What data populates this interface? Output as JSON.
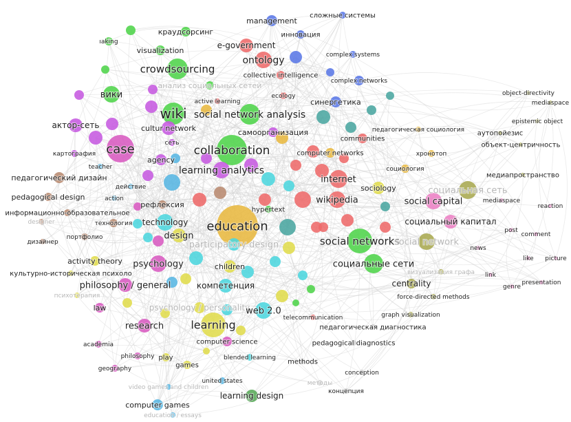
{
  "colors": {
    "green": "#4fd44a",
    "red": "#ee6a6a",
    "blue": "#5a78e6",
    "purple": "#c65ae0",
    "magenta": "#d85ac0",
    "pink": "#ec80c4",
    "cyan": "#4cd6de",
    "teal": "#4aa6a0",
    "yellow": "#e0dc4c",
    "orange": "#e8b840",
    "brown": "#b88a70",
    "olive": "#a8a850",
    "lightblue": "#58b6e2",
    "darkgreen": "#58a858",
    "grey": "#cccccc",
    "edge": "#d6d6d6"
  },
  "nodes": [
    {
      "label": "management",
      "cluster": "blue"
    },
    {
      "label": "сложные системы",
      "cluster": "blue"
    },
    {
      "label": "инновация",
      "cluster": "blue"
    },
    {
      "label": "e-government",
      "cluster": "red"
    },
    {
      "label": "ontology",
      "cluster": "red"
    },
    {
      "label": "complex systems",
      "cluster": "blue"
    },
    {
      "label": "collective intelligence",
      "cluster": "red"
    },
    {
      "label": "complex networks",
      "cluster": "blue"
    },
    {
      "label": "ecology",
      "cluster": "red"
    },
    {
      "label": "синергетика",
      "cluster": "blue"
    },
    {
      "label": "краудсорсинг",
      "cluster": "green"
    },
    {
      "label": "visualization",
      "cluster": "green"
    },
    {
      "label": "crowdsourcing",
      "cluster": "green"
    },
    {
      "label": "анализ социальных сетей",
      "cluster": "green"
    },
    {
      "label": "вики",
      "cluster": "green"
    },
    {
      "label": "active learning",
      "cluster": "red"
    },
    {
      "label": "wiki",
      "cluster": "green"
    },
    {
      "label": "social network analysis",
      "cluster": "green"
    },
    {
      "label": "актор-сеть",
      "cluster": "purple"
    },
    {
      "label": "cultur network",
      "cluster": "purple"
    },
    {
      "label": "самоорганизация",
      "cluster": "purple"
    },
    {
      "label": "case",
      "cluster": "magenta"
    },
    {
      "label": "сеть",
      "cluster": "purple"
    },
    {
      "label": "collaboration",
      "cluster": "green"
    },
    {
      "label": "картография",
      "cluster": "purple"
    },
    {
      "label": "agency",
      "cluster": "purple"
    },
    {
      "label": "teacher",
      "cluster": "lightblue"
    },
    {
      "label": "learning analytics",
      "cluster": "purple"
    },
    {
      "label": "педагогический дизайн",
      "cluster": "brown"
    },
    {
      "label": "действие",
      "cluster": "lightblue"
    },
    {
      "label": "pedagogical design",
      "cluster": "brown"
    },
    {
      "label": "action",
      "cluster": "lightblue"
    },
    {
      "label": "рефлексия",
      "cluster": "brown"
    },
    {
      "label": "информационно-образовательное",
      "cluster": "brown"
    },
    {
      "label": "designer",
      "cluster": "brown"
    },
    {
      "label": "технология",
      "cluster": "brown"
    },
    {
      "label": "technology",
      "cluster": "cyan"
    },
    {
      "label": "education",
      "cluster": "orange"
    },
    {
      "label": "hypertext",
      "cluster": "green"
    },
    {
      "label": "портфолио",
      "cluster": "brown"
    },
    {
      "label": "design",
      "cluster": "yellow"
    },
    {
      "label": "participatory design",
      "cluster": "cyan"
    },
    {
      "label": "дизайнер",
      "cluster": "brown"
    },
    {
      "label": "activity theory",
      "cluster": "yellow"
    },
    {
      "label": "psychology",
      "cluster": "magenta"
    },
    {
      "label": "children",
      "cluster": "yellow"
    },
    {
      "label": "культурно-историческая психоло",
      "cluster": "yellow"
    },
    {
      "label": "philosophy / general",
      "cluster": "magenta"
    },
    {
      "label": "компетенция",
      "cluster": "cyan"
    },
    {
      "label": "психотерапия",
      "cluster": "yellow"
    },
    {
      "label": "law",
      "cluster": "magenta"
    },
    {
      "label": "psychology / personality",
      "cluster": "yellow"
    },
    {
      "label": "web 2.0",
      "cluster": "cyan"
    },
    {
      "label": "research",
      "cluster": "magenta"
    },
    {
      "label": "learning",
      "cluster": "yellow"
    },
    {
      "label": "computer science",
      "cluster": "magenta"
    },
    {
      "label": "academia",
      "cluster": "magenta"
    },
    {
      "label": "philosophy",
      "cluster": "magenta"
    },
    {
      "label": "play",
      "cluster": "yellow"
    },
    {
      "label": "games",
      "cluster": "yellow"
    },
    {
      "label": "blended learning",
      "cluster": "cyan"
    },
    {
      "label": "geography",
      "cluster": "magenta"
    },
    {
      "label": "united states",
      "cluster": "lightblue"
    },
    {
      "label": "video games and children",
      "cluster": "lightblue"
    },
    {
      "label": "learning design",
      "cluster": "darkgreen"
    },
    {
      "label": "computer games",
      "cluster": "lightblue"
    },
    {
      "label": "education / essays",
      "cluster": "lightblue"
    },
    {
      "label": "communities",
      "cluster": "red"
    },
    {
      "label": "computer networks",
      "cluster": "orange"
    },
    {
      "label": "хронотоп",
      "cluster": "orange"
    },
    {
      "label": "педагогическая социология",
      "cluster": "orange"
    },
    {
      "label": "социология",
      "cluster": "orange"
    },
    {
      "label": "internet",
      "cluster": "red"
    },
    {
      "label": "sociology",
      "cluster": "yellow"
    },
    {
      "label": "wikipedia",
      "cluster": "red"
    },
    {
      "label": "social capital",
      "cluster": "pink"
    },
    {
      "label": "социальная сеть",
      "cluster": "olive"
    },
    {
      "label": "социальный капитал",
      "cluster": "pink"
    },
    {
      "label": "social networks",
      "cluster": "green"
    },
    {
      "label": "social network",
      "cluster": "olive"
    },
    {
      "label": "социальные сети",
      "cluster": "green"
    },
    {
      "label": "centrality",
      "cluster": "olive"
    },
    {
      "label": "force-directed methods",
      "cluster": "olive"
    },
    {
      "label": "graph visualization",
      "cluster": "olive"
    },
    {
      "label": "визуализация графа",
      "cluster": "olive"
    },
    {
      "label": "telecommunication",
      "cluster": "red"
    },
    {
      "label": "педагогическая диагностика",
      "cluster": "grey"
    },
    {
      "label": "pedagogical diagnostics",
      "cluster": "grey"
    },
    {
      "label": "methods",
      "cluster": "grey"
    },
    {
      "label": "conception",
      "cluster": "grey"
    },
    {
      "label": "методы",
      "cluster": "grey"
    },
    {
      "label": "концепция",
      "cluster": "grey"
    },
    {
      "label": "object-directivity",
      "cluster": "olive"
    },
    {
      "label": "mediaspace",
      "cluster": "olive"
    },
    {
      "label": "epistemic object",
      "cluster": "olive"
    },
    {
      "label": "аутопойезис",
      "cluster": "olive"
    },
    {
      "label": "объект-центричность",
      "cluster": "olive"
    },
    {
      "label": "медиапространство",
      "cluster": "olive"
    },
    {
      "label": "mediaspace",
      "cluster": "pink"
    },
    {
      "label": "reaction",
      "cluster": "pink"
    },
    {
      "label": "post",
      "cluster": "pink"
    },
    {
      "label": "comment",
      "cluster": "pink"
    },
    {
      "label": "news",
      "cluster": "pink"
    },
    {
      "label": "like",
      "cluster": "pink"
    },
    {
      "label": "picture",
      "cluster": "pink"
    },
    {
      "label": "link",
      "cluster": "pink"
    },
    {
      "label": "genre",
      "cluster": "pink"
    },
    {
      "label": "presentation",
      "cluster": "pink"
    },
    {
      "label": "ıaking",
      "cluster": "green"
    }
  ]
}
